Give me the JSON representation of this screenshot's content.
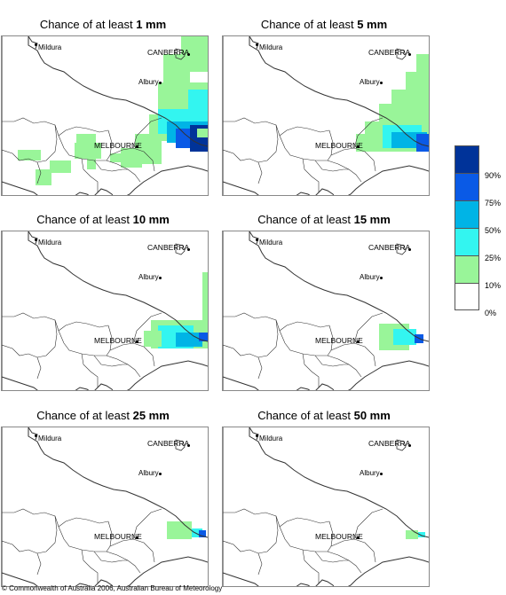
{
  "panels": [
    {
      "title_prefix": "Chance of at least ",
      "amount": "1 mm",
      "level": 0
    },
    {
      "title_prefix": "Chance of at least ",
      "amount": "5 mm",
      "level": 1
    },
    {
      "title_prefix": "Chance of at least ",
      "amount": "10 mm",
      "level": 2
    },
    {
      "title_prefix": "Chance of at least ",
      "amount": "15 mm",
      "level": 3
    },
    {
      "title_prefix": "Chance of at least ",
      "amount": "25 mm",
      "level": 4
    },
    {
      "title_prefix": "Chance of at least ",
      "amount": "50 mm",
      "level": 5
    }
  ],
  "places": {
    "mildura": "Mildura",
    "canberra": "CANBERRA",
    "albury": "Albury",
    "melbourne": "MELBOURNE"
  },
  "legend": {
    "labels": [
      "90%",
      "75%",
      "50%",
      "25%",
      "10%",
      "0%"
    ],
    "colors": [
      "#003399",
      "#0a5ae6",
      "#00b4e6",
      "#33f5f0",
      "#99f599",
      "#ffffff"
    ]
  },
  "copyright": "© Commonwealth of Australia 2006, Australian Bureau of Meteorology"
}
